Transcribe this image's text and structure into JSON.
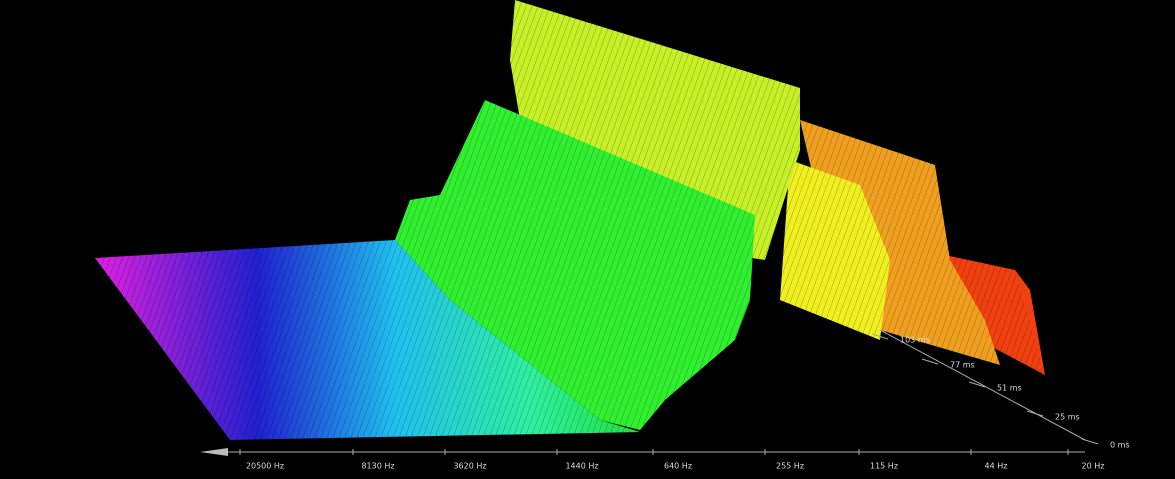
{
  "frequency_axis": {
    "labels": [
      "20500 Hz",
      "8130 Hz",
      "3620 Hz",
      "1440 Hz",
      "640 Hz",
      "255 Hz",
      "115 Hz",
      "44 Hz",
      "20 Hz"
    ]
  },
  "time_axis": {
    "labels": [
      "0 ms",
      "25 ms",
      "51 ms",
      "77 ms",
      "103 ms"
    ]
  }
}
